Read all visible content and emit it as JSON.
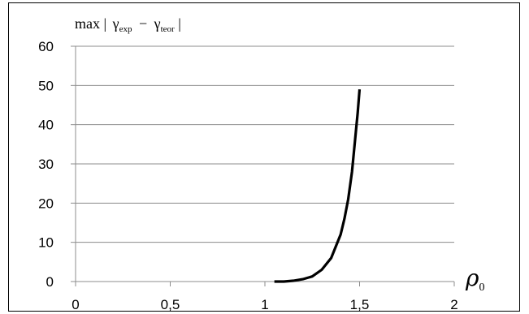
{
  "chart_data": {
    "type": "line",
    "title": "",
    "ylabel": {
      "prefix": "max |",
      "gamma": "γ",
      "sub_exp": "exp",
      "minus": "−",
      "sub_teor": "teor",
      "suffix": "|"
    },
    "xlabel": {
      "main": "ρ",
      "sub": "0"
    },
    "xlim": [
      0,
      2
    ],
    "ylim": [
      0,
      60
    ],
    "x_ticks": [
      0,
      0.5,
      1,
      1.5,
      2
    ],
    "x_tick_labels": [
      "0",
      "0,5",
      "1",
      "1,5",
      "2"
    ],
    "y_ticks": [
      0,
      10,
      20,
      30,
      40,
      50,
      60
    ],
    "y_tick_labels": [
      "0",
      "10",
      "20",
      "30",
      "40",
      "50",
      "60"
    ],
    "grid": "horizontal",
    "series": [
      {
        "color": "#000000",
        "x": [
          1.05,
          1.1,
          1.15,
          1.2,
          1.25,
          1.3,
          1.35,
          1.4,
          1.42,
          1.44,
          1.46,
          1.47,
          1.48,
          1.49,
          1.5
        ],
        "y": [
          0.0,
          0.0,
          0.2,
          0.6,
          1.3,
          3.0,
          6.0,
          12.0,
          16.0,
          21.0,
          28.0,
          33.0,
          38.0,
          43.0,
          49.0
        ]
      }
    ]
  }
}
